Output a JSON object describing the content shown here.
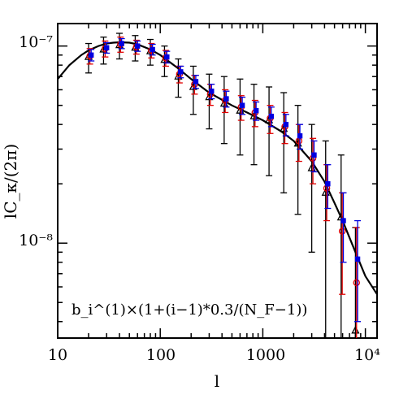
{
  "chart_data": {
    "type": "scatter",
    "title": "",
    "xlabel": "l",
    "ylabel": "lC_κ/(2π)",
    "xscale": "log",
    "yscale": "log",
    "xlim": [
      10,
      13000
    ],
    "ylim": [
      3.3e-09,
      1.3e-07
    ],
    "grid": false,
    "x_tick_labels": [
      "10",
      "100",
      "1000",
      "10⁴"
    ],
    "y_tick_labels": [
      "10⁻⁷",
      "10⁻⁸"
    ],
    "annotation": "b_i^(1)×(1+(i−1)*0.3/(N_F−1))",
    "colors": {
      "model": "#000000",
      "triangles": "#000000",
      "circles": "#e00000",
      "squares": "#0000e0"
    },
    "model_curve": {
      "name": "",
      "x": [
        10,
        13,
        17,
        20,
        25,
        30,
        35,
        40,
        50,
        60,
        80,
        100,
        150,
        200,
        300,
        500,
        700,
        1000,
        1500,
        2000,
        3000,
        4000,
        5000,
        6000,
        8000,
        10000,
        13000
      ],
      "y": [
        6.8e-08,
        8e-08,
        9e-08,
        9.5e-08,
        1e-07,
        1.03e-07,
        1.04e-07,
        1.045e-07,
        1.04e-07,
        1.02e-07,
        9.6e-08,
        9e-08,
        7.7e-08,
        6.8e-08,
        5.8e-08,
        5e-08,
        4.6e-08,
        4.2e-08,
        3.7e-08,
        3.3e-08,
        2.6e-08,
        2.05e-08,
        1.6e-08,
        1.3e-08,
        9e-09,
        6.8e-09,
        5.5e-09
      ]
    },
    "series": [
      {
        "name": "",
        "marker": "triangle",
        "x": [
          20,
          28,
          40,
          57,
          80,
          110,
          150,
          210,
          300,
          420,
          600,
          820,
          1150,
          1600,
          2200,
          3000,
          4100,
          5800,
          8000
        ],
        "y": [
          8.8e-08,
          9.6e-08,
          1.01e-07,
          9.8e-08,
          9.4e-08,
          8.5e-08,
          7e-08,
          6.2e-08,
          5.5e-08,
          5.1e-08,
          4.7e-08,
          4.4e-08,
          4.2e-08,
          3.8e-08,
          3.2e-08,
          2.4e-08,
          1.8e-08,
          1.35e-08,
          3.6e-09
        ],
        "err_low": [
          7.3e-08,
          8.1e-08,
          8.6e-08,
          8.4e-08,
          8e-08,
          7e-08,
          5.5e-08,
          4.5e-08,
          3.8e-08,
          3.2e-08,
          2.8e-08,
          2.5e-08,
          2.2e-08,
          1.8e-08,
          1.4e-08,
          9e-09,
          3.3e-09,
          3.3e-09,
          3.3e-09
        ],
        "err_high": [
          1.03e-07,
          1.11e-07,
          1.16e-07,
          1.13e-07,
          1.08e-07,
          1e-07,
          8.6e-08,
          7.9e-08,
          7.2e-08,
          7e-08,
          6.8e-08,
          6.4e-08,
          6.2e-08,
          5.8e-08,
          5e-08,
          4e-08,
          3.3e-08,
          2.8e-08,
          1.2e-08
        ]
      },
      {
        "name": "",
        "marker": "circle",
        "x": [
          20.6,
          29,
          41,
          58.5,
          82,
          113,
          154,
          216,
          308,
          430,
          615,
          840,
          1180,
          1640,
          2250,
          3080,
          4200,
          5950,
          8200
        ],
        "y": [
          8.9e-08,
          9.7e-08,
          1.02e-07,
          9.9e-08,
          9.5e-08,
          8.7e-08,
          7.2e-08,
          6.4e-08,
          5.7e-08,
          5.3e-08,
          4.9e-08,
          4.6e-08,
          4.3e-08,
          3.9e-08,
          3.3e-08,
          2.7e-08,
          1.9e-08,
          1.15e-08,
          6.3e-09
        ],
        "err_low": [
          8.1e-08,
          8.8e-08,
          9.3e-08,
          9.1e-08,
          8.7e-08,
          7.9e-08,
          6.5e-08,
          5.7e-08,
          5e-08,
          4.6e-08,
          4.2e-08,
          3.9e-08,
          3.6e-08,
          3.2e-08,
          2.6e-08,
          2e-08,
          1.3e-08,
          5.5e-09,
          3.3e-09
        ],
        "err_high": [
          9.7e-08,
          1.06e-07,
          1.11e-07,
          1.07e-07,
          1.03e-07,
          9.5e-08,
          7.9e-08,
          7.1e-08,
          6.4e-08,
          6e-08,
          5.6e-08,
          5.3e-08,
          5e-08,
          4.6e-08,
          4e-08,
          3.4e-08,
          2.5e-08,
          1.8e-08,
          1.2e-08
        ]
      },
      {
        "name": "",
        "marker": "square",
        "x": [
          21.2,
          30,
          42,
          60,
          84,
          116,
          158,
          222,
          316,
          440,
          630,
          860,
          1210,
          1680,
          2300,
          3160,
          4300,
          6100,
          8400
        ],
        "y": [
          9e-08,
          9.8e-08,
          1.03e-07,
          1e-07,
          9.6e-08,
          8.8e-08,
          7.4e-08,
          6.6e-08,
          5.9e-08,
          5.4e-08,
          5e-08,
          4.7e-08,
          4.4e-08,
          4e-08,
          3.5e-08,
          2.8e-08,
          2e-08,
          1.3e-08,
          8.3e-09
        ],
        "err_low": [
          8.4e-08,
          9.2e-08,
          9.7e-08,
          9.4e-08,
          9e-08,
          8.2e-08,
          6.9e-08,
          6.1e-08,
          5.4e-08,
          4.9e-08,
          4.5e-08,
          4.2e-08,
          3.9e-08,
          3.5e-08,
          3e-08,
          2.3e-08,
          1.5e-08,
          8e-09,
          4e-09
        ],
        "err_high": [
          9.6e-08,
          1.04e-07,
          1.09e-07,
          1.06e-07,
          1.02e-07,
          9.4e-08,
          7.9e-08,
          7.1e-08,
          6.4e-08,
          5.9e-08,
          5.5e-08,
          5.2e-08,
          4.9e-08,
          4.5e-08,
          4e-08,
          3.3e-08,
          2.5e-08,
          1.8e-08,
          1.3e-08
        ]
      }
    ]
  }
}
